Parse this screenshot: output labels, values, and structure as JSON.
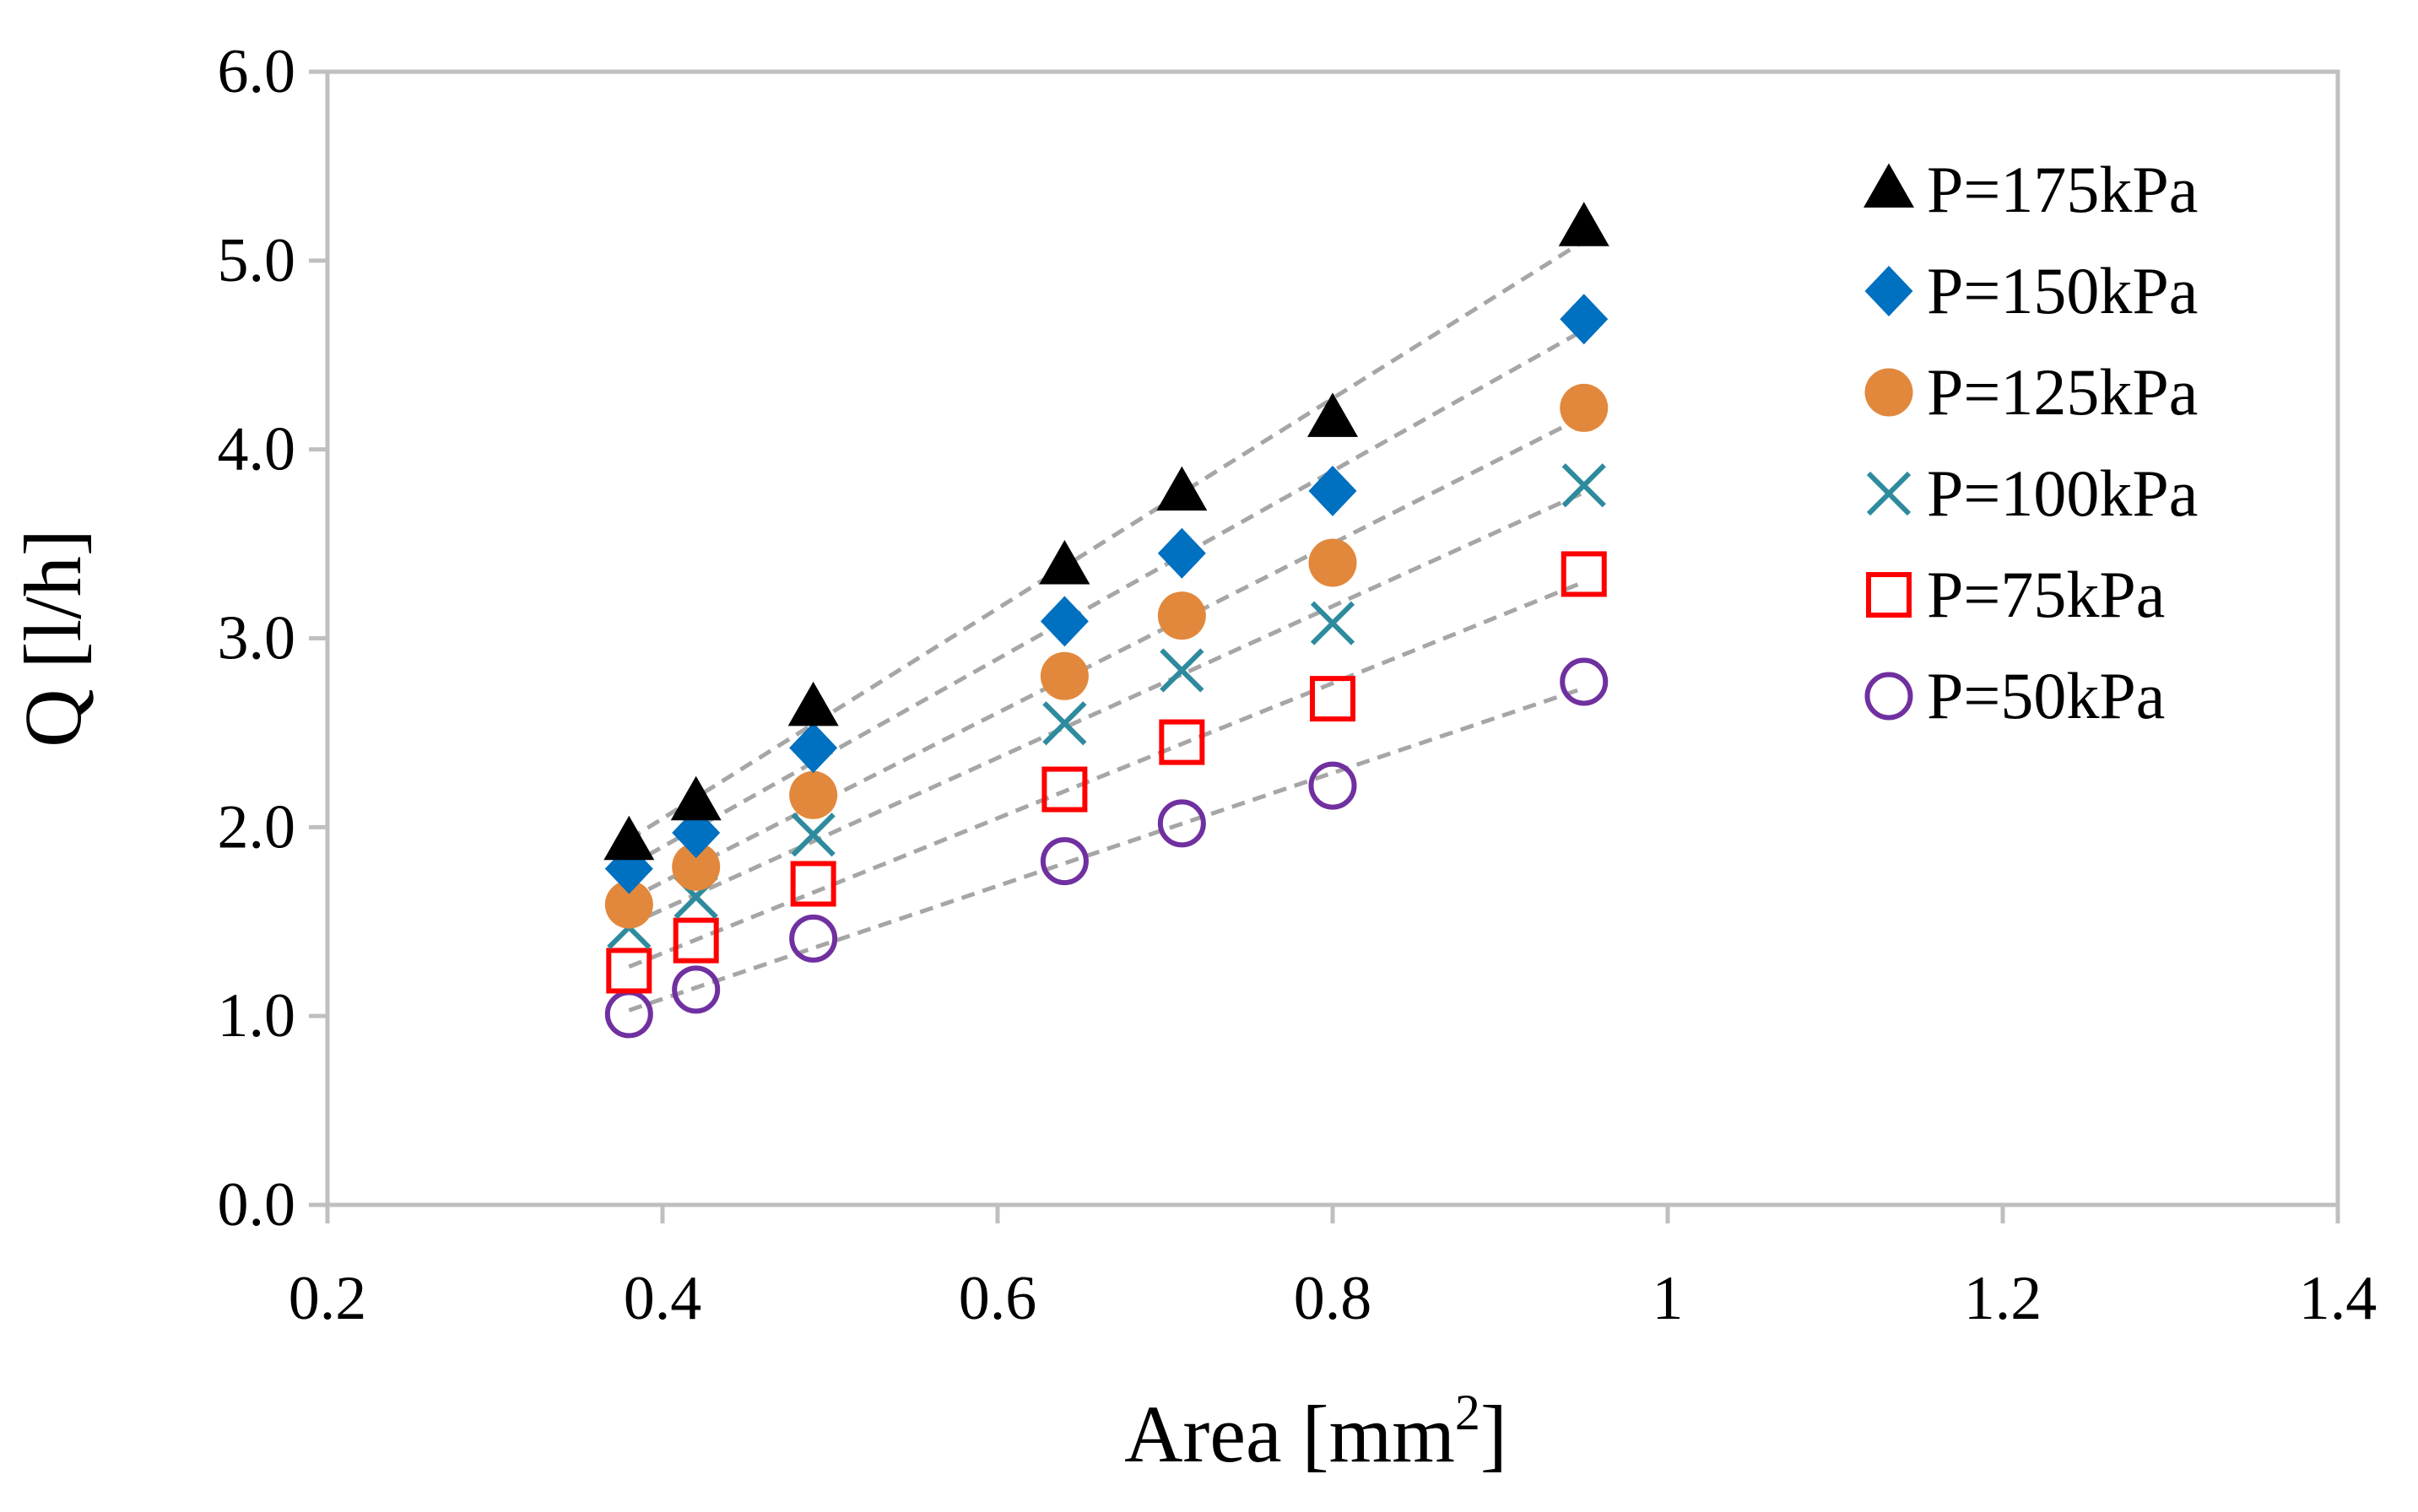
{
  "chart_data": {
    "type": "scatter",
    "xlabel": "Area [mm",
    "xlabel_sup": "2",
    "xlabel_close": "]",
    "ylabel": "Q [l/h]",
    "xlim": [
      0.2,
      1.4
    ],
    "ylim": [
      0.0,
      6.0
    ],
    "x_ticks": [
      "0.2",
      "0.4",
      "0.6",
      "0.8",
      "1",
      "1.2",
      "1.4"
    ],
    "y_ticks": [
      "0.0",
      "1.0",
      "2.0",
      "3.0",
      "4.0",
      "5.0",
      "6.0"
    ],
    "grid": false,
    "legend_position": "top-right",
    "trendlines": "dashed",
    "x": [
      0.38,
      0.42,
      0.49,
      0.64,
      0.71,
      0.8,
      0.95
    ],
    "series": [
      {
        "name": "P=175kPa",
        "marker": "triangle",
        "color": "#000000",
        "values": [
          1.92,
          2.13,
          2.63,
          3.38,
          3.77,
          4.16,
          5.17
        ]
      },
      {
        "name": "P=150kPa",
        "marker": "diamond",
        "color": "#0070c0",
        "values": [
          1.78,
          1.97,
          2.42,
          3.09,
          3.45,
          3.78,
          4.69
        ]
      },
      {
        "name": "P=125kPa",
        "marker": "circle-filled",
        "color": "#e2883c",
        "values": [
          1.59,
          1.79,
          2.17,
          2.8,
          3.12,
          3.4,
          4.22
        ]
      },
      {
        "name": "P=100kPa",
        "marker": "x",
        "color": "#2e8b9e",
        "values": [
          1.47,
          1.63,
          1.96,
          2.55,
          2.83,
          3.08,
          3.81
        ]
      },
      {
        "name": "P=75kPa",
        "marker": "square-open",
        "color": "#ff0000",
        "values": [
          1.24,
          1.4,
          1.7,
          2.2,
          2.45,
          2.68,
          3.34
        ]
      },
      {
        "name": "P=50kPa",
        "marker": "circle-open",
        "color": "#7030a0",
        "values": [
          1.01,
          1.14,
          1.41,
          1.82,
          2.02,
          2.22,
          2.77
        ]
      }
    ],
    "colors": {
      "axis": "#bfbfbf",
      "trendline": "#a6a6a6"
    }
  }
}
